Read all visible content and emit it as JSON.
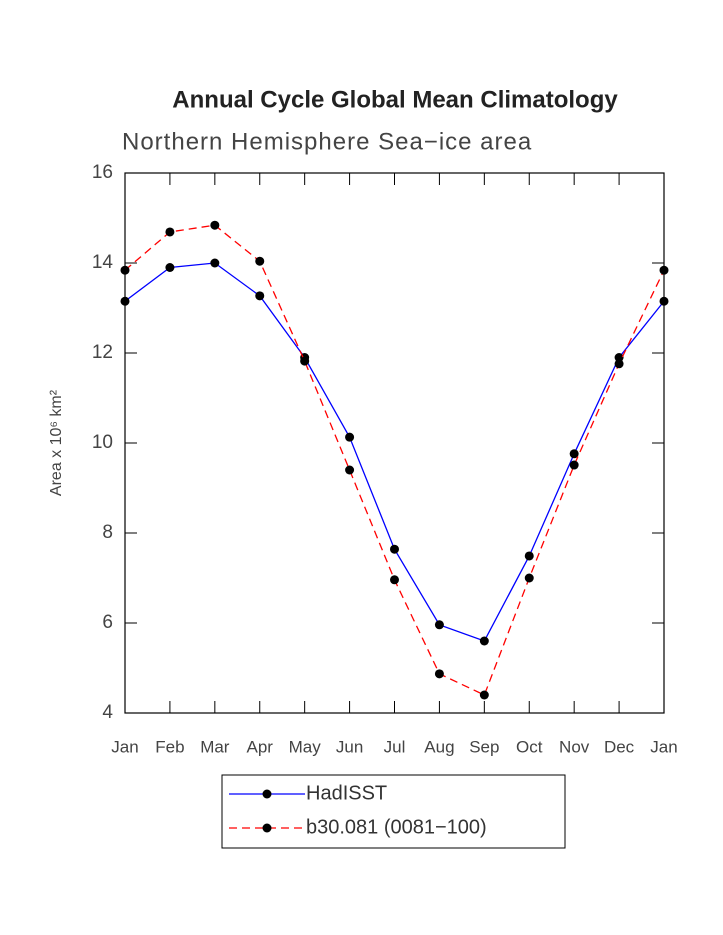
{
  "chart_data": {
    "type": "line",
    "title": "Annual Cycle Global Mean Climatology",
    "subtitle": "Northern Hemisphere Sea−ice area",
    "y_label": "Area x 10⁶ km²",
    "categories": [
      "Jan",
      "Feb",
      "Mar",
      "Apr",
      "May",
      "Jun",
      "Jul",
      "Aug",
      "Sep",
      "Oct",
      "Nov",
      "Dec",
      "Jan"
    ],
    "series": [
      {
        "name": "HadISST",
        "color": "#0000ff",
        "dash": "solid",
        "values": [
          13.15,
          13.9,
          14.0,
          13.27,
          11.9,
          10.13,
          7.64,
          5.96,
          5.6,
          7.49,
          9.76,
          11.9,
          13.15
        ]
      },
      {
        "name": "b30.081 (0081−100)",
        "color": "#ff0000",
        "dash": "dashed",
        "values": [
          13.84,
          14.69,
          14.84,
          14.04,
          11.82,
          9.4,
          6.96,
          4.87,
          4.4,
          7.0,
          9.51,
          11.76,
          13.84
        ]
      }
    ],
    "ylim": [
      4,
      16
    ],
    "yticks": [
      4,
      6,
      8,
      10,
      12,
      14,
      16
    ],
    "legend": "bottom",
    "grid": false
  }
}
